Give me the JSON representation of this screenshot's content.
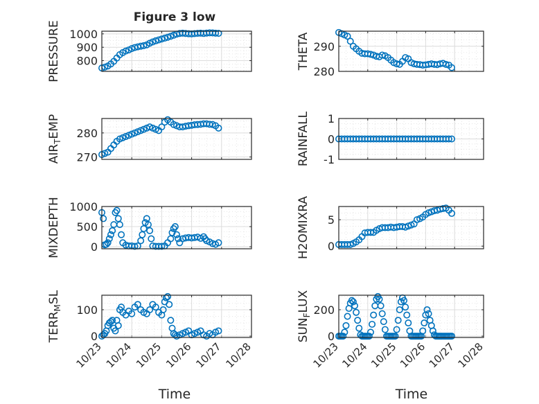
{
  "figure_title": "Figure 3 low",
  "colors": {
    "marker": "#0072BD",
    "axis": "#262626",
    "grid": "#dcdcdc",
    "background": "#ffffff"
  },
  "x_ticks": [
    "10/23",
    "10/24",
    "10/25",
    "10/26",
    "10/27",
    "10/28"
  ],
  "xlabel": "Time",
  "chart_data": [
    {
      "type": "scatter",
      "id": "pressure",
      "ylabel": "PRESSURE",
      "ylim": [
        720,
        1020
      ],
      "yticks": [
        "800",
        "900",
        "1000"
      ],
      "ytick_values": [
        800,
        900,
        1000
      ],
      "xlim": [
        "10/23",
        "10/28"
      ],
      "grid": true,
      "marker": "open-circle",
      "x": [
        0,
        0.1,
        0.2,
        0.3,
        0.4,
        0.5,
        0.6,
        0.7,
        0.8,
        0.9,
        1.0,
        1.1,
        1.2,
        1.3,
        1.4,
        1.5,
        1.6,
        1.7,
        1.8,
        1.9,
        2.0,
        2.1,
        2.2,
        2.3,
        2.4,
        2.5,
        2.6,
        2.7,
        2.8,
        2.9,
        3.0,
        3.1,
        3.2,
        3.3,
        3.4,
        3.5,
        3.6,
        3.7,
        3.8,
        3.9
      ],
      "y": [
        745,
        752,
        760,
        775,
        795,
        820,
        845,
        860,
        872,
        880,
        890,
        898,
        903,
        908,
        912,
        918,
        930,
        940,
        948,
        955,
        962,
        968,
        975,
        982,
        990,
        998,
        1003,
        1005,
        1003,
        1001,
        1000,
        1002,
        1004,
        1005,
        1003,
        1006,
        1008,
        1007,
        1005,
        1004
      ]
    },
    {
      "type": "scatter",
      "id": "theta",
      "ylabel": "THETA",
      "ylim": [
        280,
        296
      ],
      "yticks": [
        "280",
        "290"
      ],
      "ytick_values": [
        280,
        290
      ],
      "xlim": [
        "10/23",
        "10/28"
      ],
      "grid": true,
      "marker": "open-circle",
      "x": [
        0,
        0.1,
        0.2,
        0.3,
        0.4,
        0.5,
        0.6,
        0.7,
        0.8,
        0.9,
        1.0,
        1.1,
        1.2,
        1.3,
        1.4,
        1.5,
        1.6,
        1.7,
        1.8,
        1.9,
        2.0,
        2.1,
        2.2,
        2.3,
        2.4,
        2.5,
        2.6,
        2.7,
        2.8,
        2.9,
        3.0,
        3.1,
        3.2,
        3.3,
        3.4,
        3.5,
        3.6,
        3.7,
        3.8,
        3.9
      ],
      "y": [
        295.5,
        295,
        294.5,
        294,
        292,
        290,
        289,
        288,
        287.2,
        287,
        287,
        286.8,
        286.5,
        286,
        285.8,
        286.5,
        286.2,
        285.5,
        284.5,
        283.5,
        283,
        282.8,
        284,
        285.5,
        285,
        283.5,
        283,
        282.8,
        282.7,
        282.5,
        282.6,
        282.8,
        283,
        282.8,
        282.7,
        283,
        283.2,
        282.8,
        282.5,
        281.5
      ]
    },
    {
      "type": "scatter",
      "id": "air_temp",
      "ylabel": "AIR_TEMP",
      "ylim": [
        269,
        286
      ],
      "yticks": [
        "270",
        "280"
      ],
      "ytick_values": [
        270,
        280
      ],
      "xlim": [
        "10/23",
        "10/28"
      ],
      "grid": true,
      "marker": "open-circle",
      "x": [
        0,
        0.1,
        0.2,
        0.3,
        0.4,
        0.5,
        0.6,
        0.7,
        0.8,
        0.9,
        1.0,
        1.1,
        1.2,
        1.3,
        1.4,
        1.5,
        1.6,
        1.7,
        1.8,
        1.9,
        2.0,
        2.1,
        2.2,
        2.3,
        2.4,
        2.5,
        2.6,
        2.7,
        2.8,
        2.9,
        3.0,
        3.1,
        3.2,
        3.3,
        3.4,
        3.5,
        3.6,
        3.7,
        3.8,
        3.9
      ],
      "y": [
        271,
        271.5,
        272,
        273.5,
        275,
        276.5,
        277.5,
        278,
        278.5,
        279,
        279.5,
        280,
        280.5,
        281,
        281.5,
        282,
        282.5,
        282,
        281.5,
        281,
        282.5,
        284.5,
        285.5,
        284.5,
        283.5,
        283,
        282.5,
        282.5,
        282.8,
        283,
        283.2,
        283.4,
        283.5,
        283.6,
        283.8,
        283.8,
        283.6,
        283.5,
        283,
        282
      ]
    },
    {
      "type": "scatter",
      "id": "rainfall",
      "ylabel": "RAINFALL",
      "ylim": [
        -1,
        1
      ],
      "yticks": [
        "-1",
        "0",
        "1"
      ],
      "ytick_values": [
        -1,
        0,
        1
      ],
      "xlim": [
        "10/23",
        "10/28"
      ],
      "grid": true,
      "marker": "open-circle",
      "x": [
        0,
        0.1,
        0.2,
        0.3,
        0.4,
        0.5,
        0.6,
        0.7,
        0.8,
        0.9,
        1.0,
        1.1,
        1.2,
        1.3,
        1.4,
        1.5,
        1.6,
        1.7,
        1.8,
        1.9,
        2.0,
        2.1,
        2.2,
        2.3,
        2.4,
        2.5,
        2.6,
        2.7,
        2.8,
        2.9,
        3.0,
        3.1,
        3.2,
        3.3,
        3.4,
        3.5,
        3.6,
        3.7,
        3.8,
        3.9
      ],
      "y": [
        0,
        0,
        0,
        0,
        0,
        0,
        0,
        0,
        0,
        0,
        0,
        0,
        0,
        0,
        0,
        0,
        0,
        0,
        0,
        0,
        0,
        0,
        0,
        0,
        0,
        0,
        0,
        0,
        0,
        0,
        0,
        0,
        0,
        0,
        0,
        0,
        0,
        0,
        0,
        0
      ]
    },
    {
      "type": "scatter",
      "id": "mixdepth",
      "ylabel": "MIXDEPTH",
      "ylim": [
        -50,
        1000
      ],
      "yticks": [
        "0",
        "500",
        "1000"
      ],
      "ytick_values": [
        0,
        500,
        1000
      ],
      "xlim": [
        "10/23",
        "10/28"
      ],
      "grid": true,
      "marker": "open-circle",
      "x": [
        0,
        0.05,
        0.1,
        0.15,
        0.2,
        0.25,
        0.3,
        0.35,
        0.4,
        0.45,
        0.5,
        0.55,
        0.6,
        0.65,
        0.7,
        0.8,
        0.9,
        1.0,
        1.1,
        1.2,
        1.3,
        1.35,
        1.4,
        1.45,
        1.5,
        1.55,
        1.6,
        1.65,
        1.7,
        1.8,
        1.9,
        2.0,
        2.1,
        2.2,
        2.3,
        2.35,
        2.4,
        2.45,
        2.5,
        2.55,
        2.6,
        2.7,
        2.8,
        2.9,
        3.0,
        3.1,
        3.2,
        3.3,
        3.4,
        3.45,
        3.5,
        3.6,
        3.7,
        3.8,
        3.9
      ],
      "y": [
        850,
        700,
        50,
        60,
        100,
        200,
        300,
        400,
        550,
        850,
        900,
        700,
        550,
        300,
        100,
        40,
        20,
        20,
        10,
        20,
        150,
        300,
        450,
        600,
        700,
        550,
        400,
        200,
        20,
        10,
        10,
        10,
        20,
        100,
        200,
        350,
        450,
        500,
        300,
        200,
        100,
        200,
        220,
        230,
        220,
        230,
        240,
        210,
        250,
        200,
        150,
        120,
        80,
        60,
        100
      ]
    },
    {
      "type": "scatter",
      "id": "h2omixra",
      "ylabel": "H2OMIXRA",
      "ylim": [
        -0.5,
        7.5
      ],
      "yticks": [
        "0",
        "5"
      ],
      "ytick_values": [
        0,
        5
      ],
      "xlim": [
        "10/23",
        "10/28"
      ],
      "grid": true,
      "marker": "open-circle",
      "x": [
        0,
        0.1,
        0.2,
        0.3,
        0.4,
        0.5,
        0.6,
        0.7,
        0.8,
        0.9,
        1.0,
        1.1,
        1.2,
        1.3,
        1.4,
        1.5,
        1.6,
        1.7,
        1.8,
        1.9,
        2.0,
        2.1,
        2.2,
        2.3,
        2.4,
        2.5,
        2.6,
        2.7,
        2.8,
        2.9,
        3.0,
        3.1,
        3.2,
        3.3,
        3.4,
        3.5,
        3.6,
        3.7,
        3.8,
        3.9
      ],
      "y": [
        0.3,
        0.3,
        0.3,
        0.3,
        0.3,
        0.5,
        0.8,
        1.2,
        1.8,
        2.5,
        2.6,
        2.6,
        2.6,
        3.0,
        3.3,
        3.5,
        3.5,
        3.5,
        3.6,
        3.5,
        3.6,
        3.7,
        3.7,
        3.6,
        3.8,
        4.0,
        4.2,
        5.0,
        5.2,
        5.5,
        6.0,
        6.3,
        6.5,
        6.7,
        6.8,
        7.0,
        7.1,
        7.2,
        6.8,
        6.2
      ]
    },
    {
      "type": "scatter",
      "id": "terr_msl",
      "ylabel": "TERR_MSL",
      "ylim": [
        -5,
        155
      ],
      "yticks": [
        "0",
        "100"
      ],
      "ytick_values": [
        0,
        100
      ],
      "xlim": [
        "10/23",
        "10/28"
      ],
      "grid": true,
      "marker": "open-circle",
      "x": [
        0,
        0.05,
        0.1,
        0.15,
        0.2,
        0.25,
        0.3,
        0.35,
        0.4,
        0.45,
        0.5,
        0.55,
        0.6,
        0.65,
        0.7,
        0.8,
        0.9,
        1.0,
        1.1,
        1.2,
        1.3,
        1.4,
        1.5,
        1.6,
        1.7,
        1.8,
        1.9,
        2.0,
        2.05,
        2.1,
        2.15,
        2.2,
        2.25,
        2.3,
        2.35,
        2.4,
        2.45,
        2.5,
        2.6,
        2.7,
        2.8,
        2.9,
        3.0,
        3.1,
        3.2,
        3.3,
        3.4,
        3.5,
        3.6,
        3.7,
        3.8,
        3.9
      ],
      "y": [
        0,
        5,
        10,
        20,
        40,
        50,
        55,
        60,
        30,
        20,
        60,
        40,
        100,
        110,
        90,
        80,
        95,
        85,
        110,
        120,
        100,
        90,
        85,
        100,
        120,
        110,
        90,
        80,
        100,
        130,
        145,
        150,
        120,
        60,
        30,
        10,
        5,
        0,
        5,
        10,
        15,
        20,
        5,
        10,
        15,
        20,
        5,
        0,
        10,
        5,
        15,
        20
      ]
    },
    {
      "type": "scatter",
      "id": "sun_flux",
      "ylabel": "SUN_FLUX",
      "ylim": [
        -10,
        310
      ],
      "yticks": [
        "0",
        "200"
      ],
      "ytick_values": [
        0,
        200
      ],
      "xlim": [
        "10/23",
        "10/28"
      ],
      "grid": true,
      "marker": "open-circle",
      "x": [
        0,
        0.05,
        0.1,
        0.15,
        0.2,
        0.25,
        0.3,
        0.35,
        0.4,
        0.45,
        0.5,
        0.55,
        0.6,
        0.65,
        0.7,
        0.75,
        0.8,
        0.85,
        0.9,
        0.95,
        1.0,
        1.05,
        1.1,
        1.15,
        1.2,
        1.25,
        1.3,
        1.35,
        1.4,
        1.45,
        1.5,
        1.55,
        1.6,
        1.65,
        1.7,
        1.75,
        1.8,
        1.85,
        1.9,
        1.95,
        2.0,
        2.05,
        2.1,
        2.15,
        2.2,
        2.25,
        2.3,
        2.35,
        2.4,
        2.45,
        2.5,
        2.55,
        2.6,
        2.65,
        2.7,
        2.75,
        2.8,
        2.85,
        2.9,
        2.95,
        3.0,
        3.05,
        3.1,
        3.15,
        3.2,
        3.25,
        3.3,
        3.35,
        3.4,
        3.45,
        3.5,
        3.55,
        3.6,
        3.65,
        3.7,
        3.75,
        3.8,
        3.85,
        3.9
      ],
      "y": [
        0,
        0,
        0,
        0,
        30,
        80,
        150,
        210,
        250,
        270,
        260,
        230,
        180,
        120,
        60,
        10,
        0,
        0,
        0,
        0,
        0,
        0,
        30,
        90,
        160,
        230,
        280,
        300,
        280,
        230,
        170,
        110,
        50,
        0,
        0,
        0,
        0,
        0,
        0,
        0,
        50,
        120,
        200,
        260,
        290,
        270,
        220,
        160,
        100,
        40,
        0,
        0,
        0,
        0,
        0,
        0,
        0,
        0,
        40,
        100,
        160,
        200,
        170,
        120,
        80,
        40,
        10,
        0,
        0,
        0,
        0,
        0,
        0,
        0,
        0,
        0,
        0,
        0,
        0
      ]
    }
  ]
}
